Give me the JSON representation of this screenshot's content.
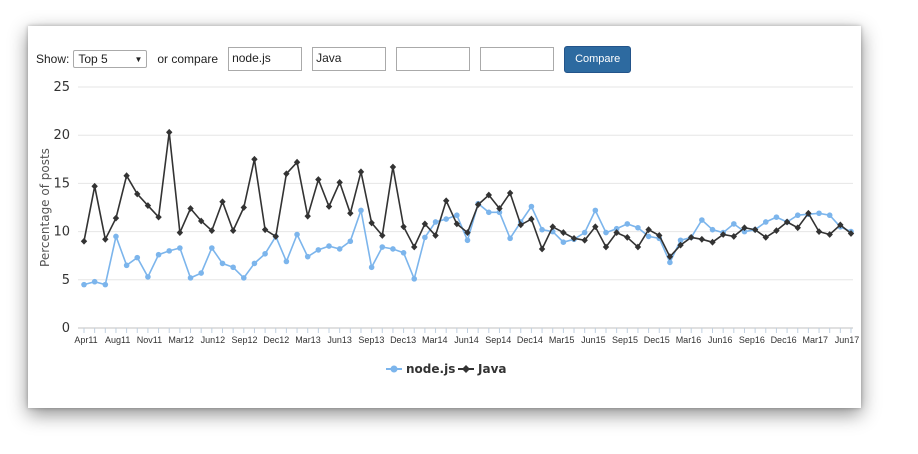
{
  "controls": {
    "show_label": "Show:",
    "show_value": "Top 5",
    "compare_label": "or compare",
    "inputs": [
      "node.js",
      "Java",
      "",
      ""
    ],
    "compare_button": "Compare"
  },
  "chart_data": {
    "type": "line",
    "ylabel": "Percentage of posts",
    "ylim": [
      0,
      25
    ],
    "yticks": [
      0,
      5,
      10,
      15,
      20,
      25
    ],
    "xtick_labels": [
      "Apr11",
      "Aug11",
      "Nov11",
      "Mar12",
      "Jun12",
      "Sep12",
      "Dec12",
      "Mar13",
      "Jun13",
      "Sep13",
      "Dec13",
      "Mar14",
      "Jun14",
      "Sep14",
      "Dec14",
      "Mar15",
      "Jun15",
      "Sep15",
      "Dec15",
      "Mar16",
      "Jun16",
      "Sep16",
      "Dec16",
      "Mar17",
      "Jun17"
    ],
    "grid": true,
    "legend_position": "bottom",
    "series": [
      {
        "name": "node.js",
        "color": "#7cb5ec",
        "marker": "circle",
        "values": [
          4.5,
          4.8,
          4.5,
          9.5,
          6.5,
          7.3,
          5.3,
          7.6,
          8.0,
          8.3,
          5.2,
          5.7,
          8.3,
          6.7,
          6.3,
          5.2,
          6.7,
          7.7,
          9.5,
          6.9,
          9.7,
          7.4,
          8.1,
          8.5,
          8.2,
          9.0,
          12.2,
          6.3,
          8.4,
          8.2,
          7.8,
          5.1,
          9.4,
          11.0,
          11.3,
          11.7,
          9.1,
          12.9,
          12.0,
          12.0,
          9.3,
          11.0,
          12.6,
          10.2,
          10.0,
          8.9,
          9.2,
          9.9,
          12.2,
          9.9,
          10.3,
          10.8,
          10.4,
          9.5,
          9.3,
          6.8,
          9.1,
          9.4,
          11.2,
          10.2,
          9.9,
          10.8,
          10.0,
          10.2,
          11.0,
          11.5,
          11.0,
          11.7,
          11.8,
          11.9,
          11.7,
          10.5,
          10.0
        ]
      },
      {
        "name": "Java",
        "color": "#333333",
        "marker": "diamond",
        "values": [
          9.0,
          14.7,
          9.2,
          11.4,
          15.8,
          13.9,
          12.7,
          11.5,
          20.3,
          9.9,
          12.4,
          11.1,
          10.1,
          13.1,
          10.1,
          12.5,
          17.5,
          10.2,
          9.5,
          16.0,
          17.2,
          11.6,
          15.4,
          12.6,
          15.1,
          11.9,
          16.2,
          10.9,
          9.6,
          16.7,
          10.5,
          8.4,
          10.8,
          9.6,
          13.2,
          10.8,
          9.9,
          12.8,
          13.8,
          12.4,
          14.0,
          10.7,
          11.3,
          8.2,
          10.5,
          9.9,
          9.3,
          9.1,
          10.5,
          8.4,
          9.9,
          9.4,
          8.4,
          10.2,
          9.6,
          7.4,
          8.6,
          9.4,
          9.2,
          8.9,
          9.7,
          9.5,
          10.4,
          10.2,
          9.4,
          10.1,
          11.0,
          10.4,
          11.9,
          10.0,
          9.7,
          10.7,
          9.8
        ]
      }
    ]
  }
}
